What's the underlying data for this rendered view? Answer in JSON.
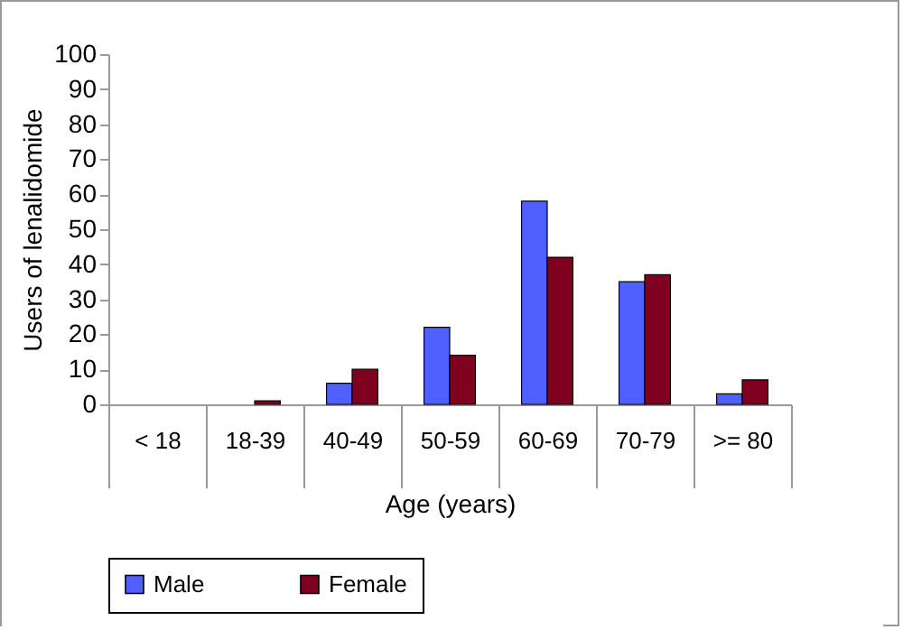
{
  "chart_data": {
    "type": "bar",
    "xlabel": "Age (years)",
    "ylabel": "Users of lenalidomide",
    "categories": [
      "< 18",
      "18-39",
      "40-49",
      "50-59",
      "60-69",
      "70-79",
      ">= 80"
    ],
    "series": [
      {
        "name": "Male",
        "color": "#5060ff",
        "values": [
          0,
          0,
          6,
          22,
          58,
          35,
          3
        ]
      },
      {
        "name": "Female",
        "color": "#800020",
        "values": [
          0,
          1,
          10,
          14,
          42,
          37,
          7
        ]
      }
    ],
    "ylim": [
      0,
      100
    ],
    "yticks": [
      0,
      10,
      20,
      30,
      40,
      50,
      60,
      70,
      80,
      90,
      100
    ],
    "grid": false,
    "legend": "bottom"
  }
}
